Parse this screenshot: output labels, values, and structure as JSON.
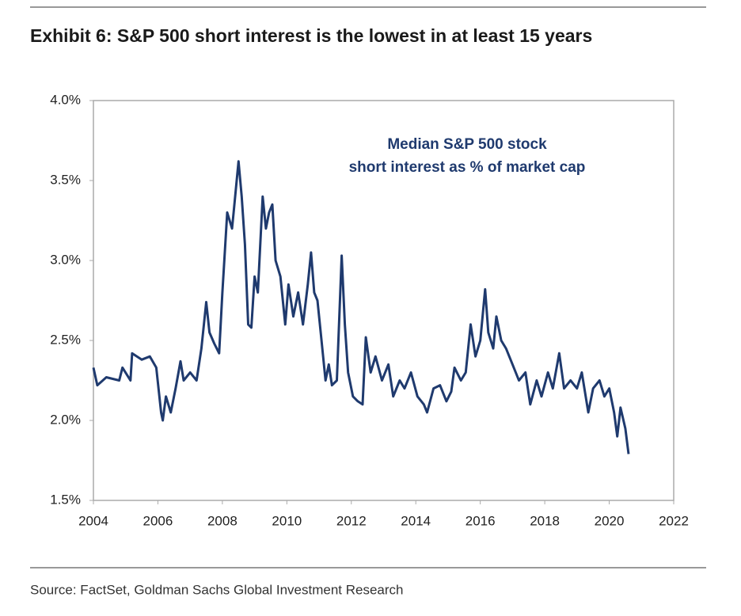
{
  "chart_data": {
    "type": "line",
    "title": "Exhibit 6: S&P 500 short interest is the lowest in at least 15 years",
    "annotation": [
      "Median S&P 500 stock",
      "short interest as % of market cap"
    ],
    "source": "Source: FactSet, Goldman Sachs Global Investment Research",
    "x": [
      2004.0,
      2004.12,
      2004.4,
      2004.8,
      2004.9,
      2005.15,
      2005.2,
      2005.5,
      2005.75,
      2005.95,
      2006.1,
      2006.15,
      2006.25,
      2006.4,
      2006.55,
      2006.7,
      2006.8,
      2007.0,
      2007.2,
      2007.35,
      2007.5,
      2007.6,
      2007.75,
      2007.9,
      2008.0,
      2008.15,
      2008.3,
      2008.35,
      2008.5,
      2008.6,
      2008.7,
      2008.8,
      2008.9,
      2009.0,
      2009.1,
      2009.25,
      2009.35,
      2009.45,
      2009.55,
      2009.65,
      2009.8,
      2009.95,
      2010.05,
      2010.2,
      2010.35,
      2010.5,
      2010.65,
      2010.75,
      2010.85,
      2010.95,
      2011.05,
      2011.2,
      2011.3,
      2011.4,
      2011.55,
      2011.7,
      2011.8,
      2011.9,
      2012.05,
      2012.2,
      2012.35,
      2012.45,
      2012.6,
      2012.75,
      2012.95,
      2013.15,
      2013.3,
      2013.5,
      2013.65,
      2013.85,
      2014.05,
      2014.25,
      2014.35,
      2014.55,
      2014.75,
      2014.95,
      2015.1,
      2015.2,
      2015.4,
      2015.55,
      2015.7,
      2015.85,
      2016.0,
      2016.15,
      2016.25,
      2016.4,
      2016.5,
      2016.65,
      2016.8,
      2017.0,
      2017.2,
      2017.4,
      2017.55,
      2017.75,
      2017.9,
      2018.1,
      2018.25,
      2018.45,
      2018.6,
      2018.8,
      2019.0,
      2019.15,
      2019.35,
      2019.5,
      2019.7,
      2019.85,
      2020.0,
      2020.15,
      2020.25,
      2020.35,
      2020.5,
      2020.6
    ],
    "series": [
      {
        "color": "#1f3a6e",
        "values": [
          2.33,
          2.22,
          2.27,
          2.25,
          2.33,
          2.25,
          2.42,
          2.38,
          2.4,
          2.33,
          2.05,
          2.0,
          2.15,
          2.05,
          2.2,
          2.37,
          2.25,
          2.3,
          2.25,
          2.45,
          2.74,
          2.55,
          2.48,
          2.42,
          2.8,
          3.3,
          3.2,
          3.3,
          3.62,
          3.4,
          3.1,
          2.6,
          2.58,
          2.9,
          2.8,
          3.4,
          3.2,
          3.3,
          3.35,
          3.0,
          2.9,
          2.6,
          2.85,
          2.65,
          2.8,
          2.6,
          2.85,
          3.05,
          2.8,
          2.75,
          2.55,
          2.25,
          2.35,
          2.22,
          2.25,
          3.03,
          2.6,
          2.3,
          2.15,
          2.12,
          2.1,
          2.52,
          2.3,
          2.4,
          2.25,
          2.35,
          2.15,
          2.25,
          2.2,
          2.3,
          2.15,
          2.1,
          2.05,
          2.2,
          2.22,
          2.12,
          2.18,
          2.33,
          2.25,
          2.3,
          2.6,
          2.4,
          2.5,
          2.82,
          2.55,
          2.45,
          2.65,
          2.5,
          2.45,
          2.35,
          2.25,
          2.3,
          2.1,
          2.25,
          2.15,
          2.3,
          2.2,
          2.42,
          2.2,
          2.25,
          2.2,
          2.3,
          2.05,
          2.2,
          2.25,
          2.15,
          2.2,
          2.05,
          1.9,
          2.08,
          1.95,
          1.79
        ]
      }
    ],
    "xlim": [
      2004,
      2022
    ],
    "xticks": [
      2004,
      2006,
      2008,
      2010,
      2012,
      2014,
      2016,
      2018,
      2020,
      2022
    ],
    "ylim": [
      1.5,
      4.0
    ],
    "yticks": [
      {
        "value": 1.5,
        "label": "1.5%"
      },
      {
        "value": 2.0,
        "label": "2.0%"
      },
      {
        "value": 2.5,
        "label": "2.5%"
      },
      {
        "value": 3.0,
        "label": "3.0%"
      },
      {
        "value": 3.5,
        "label": "3.5%"
      },
      {
        "value": 4.0,
        "label": "4.0%"
      }
    ],
    "grid": false
  }
}
